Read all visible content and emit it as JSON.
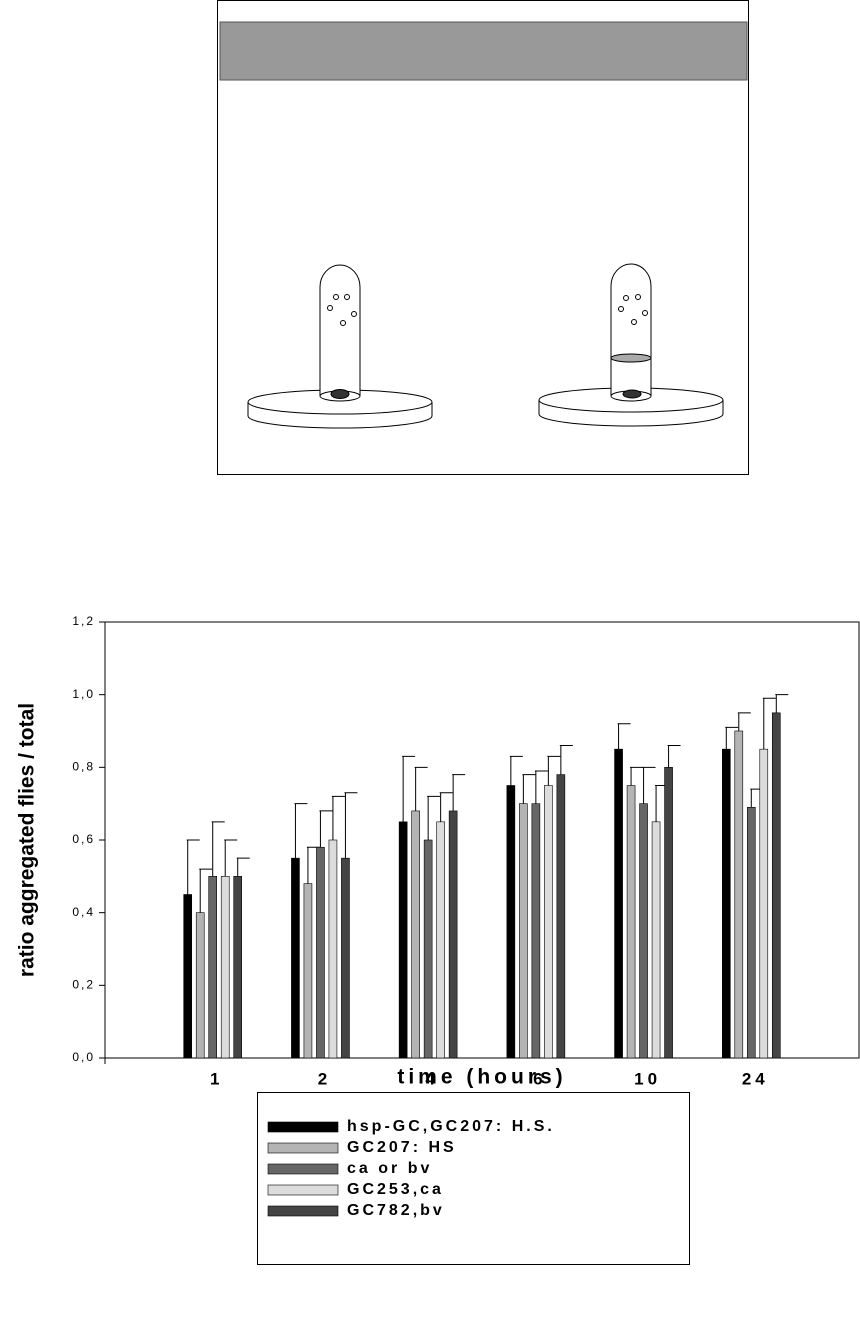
{
  "chart_data": {
    "type": "bar",
    "xlabel": "time (hours)",
    "ylabel": "ratio  aggregated flies / total",
    "categories": [
      "1",
      "2",
      "4",
      "6",
      "10",
      "24"
    ],
    "series": [
      {
        "name": "hsp-GC,GC207: H.S.",
        "color": "#000000",
        "values": [
          0.45,
          0.55,
          0.65,
          0.75,
          0.85,
          0.85
        ],
        "errors": [
          0.15,
          0.15,
          0.18,
          0.08,
          0.07,
          0.06
        ]
      },
      {
        "name": "GC207: HS",
        "color": "#b4b4b4",
        "values": [
          0.4,
          0.48,
          0.68,
          0.7,
          0.75,
          0.9
        ],
        "errors": [
          0.12,
          0.1,
          0.12,
          0.08,
          0.05,
          0.05
        ]
      },
      {
        "name": "ca or bv",
        "color": "#666666",
        "values": [
          0.5,
          0.58,
          0.6,
          0.7,
          0.7,
          0.69
        ],
        "errors": [
          0.15,
          0.1,
          0.12,
          0.09,
          0.1,
          0.05
        ]
      },
      {
        "name": "GC253,ca",
        "color": "#dcdcdc",
        "values": [
          0.5,
          0.6,
          0.65,
          0.75,
          0.65,
          0.85
        ],
        "errors": [
          0.1,
          0.12,
          0.08,
          0.08,
          0.1,
          0.14
        ]
      },
      {
        "name": "GC782,bv",
        "color": "#444444",
        "values": [
          0.5,
          0.55,
          0.68,
          0.78,
          0.8,
          0.95
        ],
        "errors": [
          0.05,
          0.18,
          0.1,
          0.08,
          0.06,
          0.05
        ]
      }
    ],
    "ylim": [
      0,
      1.2
    ],
    "yticks": [
      {
        "value": 0,
        "label": "0,0"
      },
      {
        "value": 0.2,
        "label": "0,2"
      },
      {
        "value": 0.4,
        "label": "0,4"
      },
      {
        "value": 0.6,
        "label": "0,6"
      },
      {
        "value": 0.8,
        "label": "0,8"
      },
      {
        "value": 1.0,
        "label": "1,0"
      },
      {
        "value": 1.2,
        "label": "1,2"
      }
    ],
    "legend": "bottom"
  }
}
